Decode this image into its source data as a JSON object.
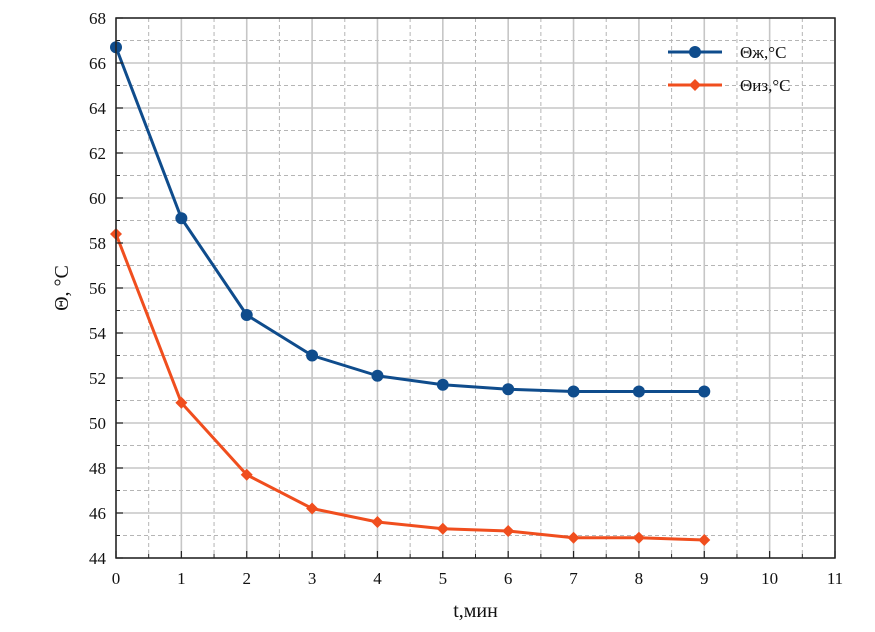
{
  "chart_data": {
    "type": "line",
    "xlabel": "t,мин",
    "ylabel": "Θ, °C",
    "xlim": [
      0,
      11
    ],
    "ylim": [
      44,
      68
    ],
    "x_ticks": [
      0,
      1,
      2,
      3,
      4,
      5,
      6,
      7,
      8,
      9,
      10,
      11
    ],
    "y_ticks": [
      44,
      46,
      48,
      50,
      52,
      54,
      56,
      58,
      60,
      62,
      64,
      66,
      68
    ],
    "grid": "major solid, minor dashed",
    "legend_position": "top-right",
    "series": [
      {
        "name": "Θж,°C",
        "color": "#0f4c8c",
        "marker": "circle",
        "x": [
          0,
          1,
          2,
          3,
          4,
          5,
          6,
          7,
          8,
          9
        ],
        "values": [
          66.7,
          59.1,
          54.8,
          53.0,
          52.1,
          51.7,
          51.5,
          51.4,
          51.4,
          51.4
        ]
      },
      {
        "name": "Θиз,°C",
        "color": "#f04e1e",
        "marker": "diamond",
        "x": [
          0,
          1,
          2,
          3,
          4,
          5,
          6,
          7,
          8,
          9
        ],
        "values": [
          58.4,
          50.9,
          47.7,
          46.2,
          45.6,
          45.3,
          45.2,
          44.9,
          44.9,
          44.8
        ]
      }
    ]
  }
}
